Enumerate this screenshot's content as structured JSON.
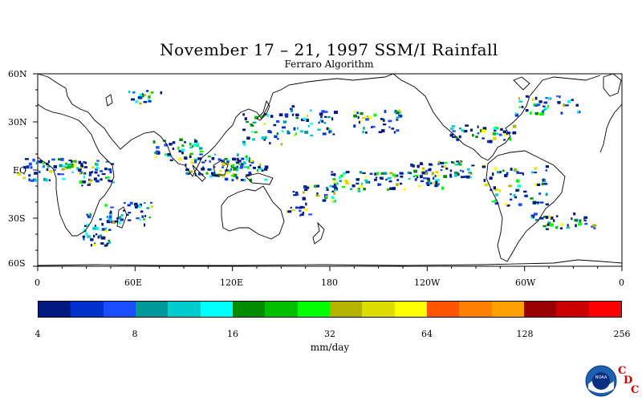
{
  "title": "November 17 – 21, 1997 SSM/I Rainfall",
  "subtitle": "Ferraro Algorithm",
  "lat_labels": [
    "60N",
    "30N",
    "EQ",
    "30S",
    "60S"
  ],
  "lon_labels": [
    "0",
    "60E",
    "120E",
    "180",
    "120W",
    "60W",
    "0"
  ],
  "colorbar": {
    "colors": [
      "#001a80",
      "#0033cc",
      "#1a4dff",
      "#009999",
      "#00cccc",
      "#00ffff",
      "#008c00",
      "#00c000",
      "#00ff00",
      "#b3b300",
      "#dddd00",
      "#ffff00",
      "#ff5500",
      "#ff8000",
      "#ffa000",
      "#990000",
      "#cc0000",
      "#ff0000"
    ],
    "tick_labels": [
      "4",
      "8",
      "16",
      "32",
      "64",
      "128",
      "256"
    ],
    "units": "mm/day"
  },
  "logo": {
    "letters": [
      "C",
      "D",
      "C"
    ],
    "noaa_text": "NOAA"
  }
}
